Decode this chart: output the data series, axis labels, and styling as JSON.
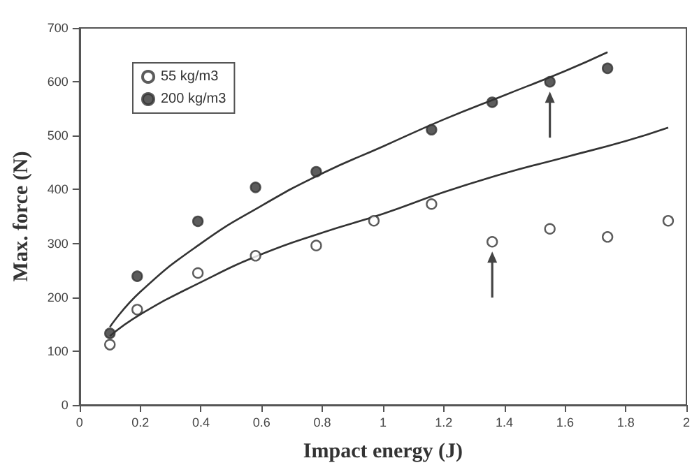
{
  "chart_data": {
    "type": "scatter",
    "xlabel": "Impact energy (J)",
    "ylabel": "Max. force (N)",
    "xlim": [
      0,
      2
    ],
    "xticks": [
      0,
      0.2,
      0.4,
      0.6,
      0.8,
      1,
      1.2,
      1.4,
      1.6,
      1.8,
      2
    ],
    "ylim": [
      0,
      700
    ],
    "yticks": [
      0,
      100,
      200,
      300,
      400,
      500,
      600,
      700
    ],
    "grid": false,
    "legend": "top left",
    "marker": "circle",
    "series": [
      {
        "name": "55 kg/m3",
        "color": "#ffffff",
        "x": [
          0.1,
          0.19,
          0.39,
          0.58,
          0.78,
          0.97,
          1.16,
          1.36,
          1.55,
          1.74,
          1.94
        ],
        "values": [
          112,
          177,
          245,
          277,
          296,
          342,
          373,
          303,
          327,
          312,
          342
        ]
      },
      {
        "name": "200 kg/m3",
        "color": "#333333",
        "x": [
          0.1,
          0.19,
          0.39,
          0.58,
          0.78,
          1.16,
          1.36,
          1.55,
          1.74
        ],
        "values": [
          133,
          239,
          341,
          404,
          433,
          511,
          562,
          600,
          625
        ]
      },
      {
        "type": "line",
        "marker": "none",
        "color": "#333333",
        "x": [
          0.1,
          0.2,
          0.4,
          0.6,
          0.8,
          1.0,
          1.2,
          1.4,
          1.6,
          1.8,
          1.94
        ],
        "values": [
          128,
          168,
          228,
          280,
          320,
          355,
          395,
          430,
          460,
          490,
          515
        ]
      },
      {
        "type": "line",
        "marker": "none",
        "color": "#333333",
        "x": [
          0.1,
          0.2,
          0.4,
          0.6,
          0.8,
          1.0,
          1.2,
          1.4,
          1.6,
          1.74
        ],
        "values": [
          145,
          210,
          300,
          370,
          430,
          480,
          530,
          575,
          620,
          655
        ]
      }
    ]
  }
}
